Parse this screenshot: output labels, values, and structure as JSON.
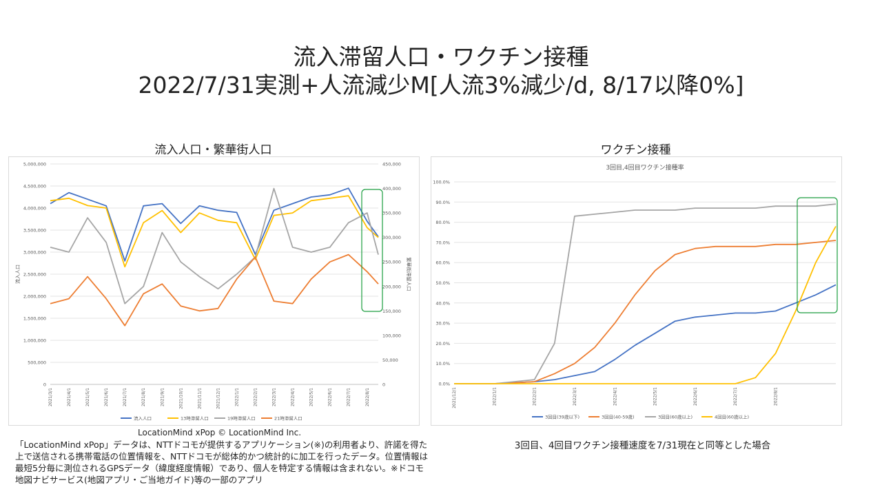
{
  "title_line1": "流入滞留人口・ワクチン接種",
  "title_line2": "2022/7/31実測+人流減少M[人流3%減少/d, 8/17以降0%]",
  "left_panel_title": "流入人口・繁華街人口",
  "right_panel_title": "ワクチン接種",
  "credit": "LocationMind xPop © LocationMind Inc.",
  "note": "「LocationMind xPop」データは、NTTドコモが提供するアプリケーション(※)の利用者より、許諾を得た上で送信される携帯電話の位置情報を、NTTドコモが総体的かつ統計的に加工を行ったデータ。位置情報は最短5分毎に測位されるGPSデータ（緯度経度情報）であり、個人を特定する情報は含まれない。※ドコモ地図ナビサービス(地図アプリ・ご当地ガイド)等の一部のアプリ",
  "caption": "3回目、4回目ワクチン接種速度を7/31現在と同等とした場合",
  "highlight_color": "#1a9c3e",
  "chart_data": [
    {
      "type": "line",
      "title": "",
      "ylabel": "流入人口",
      "y2label": "繁華街滞留人口",
      "ylim": [
        0,
        5000000
      ],
      "y2lim": [
        0,
        450000
      ],
      "yticks": [
        "0",
        "500,000",
        "1,000,000",
        "1,500,000",
        "2,000,000",
        "2,500,000",
        "3,000,000",
        "3,500,000",
        "4,000,000",
        "4,500,000",
        "5,000,000"
      ],
      "y2ticks": [
        "0",
        "50,000",
        "100,000",
        "150,000",
        "200,000",
        "250,000",
        "300,000",
        "350,000",
        "400,000",
        "450,000"
      ],
      "xticks": [
        "2021/3/1",
        "2021/4/1",
        "2021/5/1",
        "2021/6/1",
        "2021/7/1",
        "2021/8/1",
        "2021/9/1",
        "2021/10/1",
        "2021/11/1",
        "2021/12/1",
        "2022/1/1",
        "2022/2/1",
        "2022/3/1",
        "2022/4/1",
        "2022/5/1",
        "2022/6/1",
        "2022/7/1",
        "2022/8/1"
      ],
      "x_months": [
        0,
        1,
        2,
        3,
        4,
        5,
        6,
        7,
        8,
        9,
        10,
        11,
        12,
        13,
        14,
        15,
        16,
        17,
        17.6
      ],
      "legend_position": "bottom",
      "series": [
        {
          "name": "流入人口",
          "axis": "left",
          "color": "#4472C4",
          "values": [
            4100000,
            4350000,
            4200000,
            4050000,
            2800000,
            4050000,
            4100000,
            3650000,
            4050000,
            3950000,
            3900000,
            2950000,
            3950000,
            4100000,
            4250000,
            4300000,
            4450000,
            3700000,
            3350000
          ]
        },
        {
          "name": "13時滞留人口",
          "axis": "right",
          "color": "#FFC000",
          "values": [
            375000,
            380000,
            365000,
            360000,
            240000,
            330000,
            355000,
            310000,
            350000,
            335000,
            330000,
            255000,
            345000,
            350000,
            375000,
            380000,
            385000,
            320000,
            300000
          ]
        },
        {
          "name": "19時滞留人口",
          "axis": "right",
          "color": "#A5A5A5",
          "values": [
            280000,
            270000,
            340000,
            290000,
            165000,
            200000,
            310000,
            250000,
            220000,
            195000,
            225000,
            260000,
            400000,
            280000,
            270000,
            280000,
            330000,
            350000,
            265000
          ]
        },
        {
          "name": "21時滞留人口",
          "axis": "right",
          "color": "#ED7D31",
          "values": [
            165000,
            175000,
            220000,
            175000,
            120000,
            185000,
            205000,
            160000,
            150000,
            155000,
            215000,
            260000,
            170000,
            165000,
            215000,
            250000,
            265000,
            230000,
            205000
          ]
        }
      ]
    },
    {
      "type": "line",
      "title": "3回目,4回目ワクチン接種率",
      "ylim": [
        0,
        100
      ],
      "yticks": [
        "0.0%",
        "10.0%",
        "20.0%",
        "30.0%",
        "40.0%",
        "50.0%",
        "60.0%",
        "70.0%",
        "80.0%",
        "90.0%",
        "100.0%"
      ],
      "xticks": [
        "2021/12/1",
        "2022/1/1",
        "2022/2/1",
        "2022/3/1",
        "2022/4/1",
        "2022/5/1",
        "2022/6/1",
        "2022/7/1",
        "2022/8/1"
      ],
      "x_months": [
        0,
        1,
        2,
        2.5,
        3,
        3.5,
        4,
        4.5,
        5,
        5.5,
        6,
        6.5,
        7,
        7.5,
        8,
        8.5,
        9,
        9.5
      ],
      "legend_position": "bottom",
      "series": [
        {
          "name": "3回目(39歳以下)",
          "color": "#4472C4",
          "values": [
            0,
            0,
            1,
            2,
            4,
            6,
            12,
            19,
            25,
            31,
            33,
            34,
            35,
            35,
            36,
            40,
            44,
            49
          ]
        },
        {
          "name": "3回目(40-59歳)",
          "color": "#ED7D31",
          "values": [
            0,
            0,
            1,
            5,
            10,
            18,
            30,
            44,
            56,
            64,
            67,
            68,
            68,
            68,
            69,
            69,
            70,
            71
          ]
        },
        {
          "name": "3回目(60歳以上)",
          "color": "#A5A5A5",
          "values": [
            0,
            0,
            2,
            20,
            83,
            84,
            85,
            86,
            86,
            86,
            87,
            87,
            87,
            87,
            88,
            88,
            88,
            89
          ]
        },
        {
          "name": "4回目(60歳以上)",
          "color": "#FFC000",
          "values": [
            0,
            0,
            0,
            0,
            0,
            0,
            0,
            0,
            0,
            0,
            0,
            0,
            0,
            3,
            15,
            36,
            60,
            78
          ]
        }
      ]
    }
  ]
}
